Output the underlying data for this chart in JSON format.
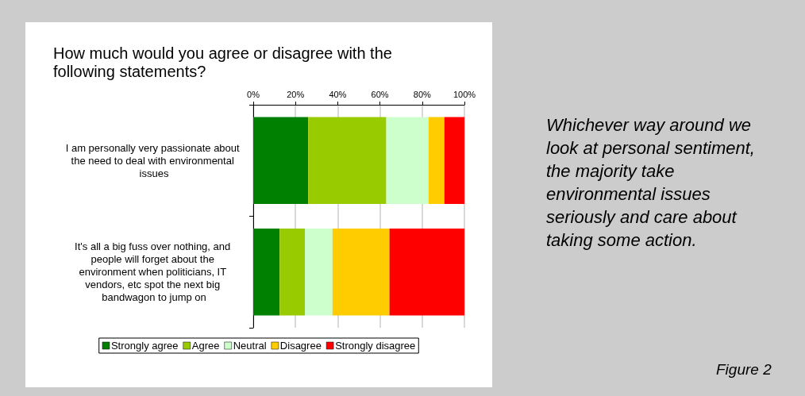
{
  "chart_data": {
    "type": "bar",
    "orientation": "horizontal",
    "stacked": true,
    "title": "How much would you agree or disagree with the following statements?",
    "categories": [
      "I am personally very passionate about the need to deal with environmental issues",
      "It's all a big fuss over nothing, and people will forget about the environment when politicians, IT vendors, etc spot the next big bandwagon to jump on"
    ],
    "series": [
      {
        "name": "Strongly agree",
        "color": "#008000",
        "values": [
          26,
          12.5
        ]
      },
      {
        "name": "Agree",
        "color": "#99cc00",
        "values": [
          37,
          12
        ]
      },
      {
        "name": "Neutral",
        "color": "#ccffcc",
        "values": [
          20,
          13
        ]
      },
      {
        "name": "Disagree",
        "color": "#ffcc00",
        "values": [
          7.5,
          27
        ]
      },
      {
        "name": "Strongly disagree",
        "color": "#ff0000",
        "values": [
          9.5,
          35.5
        ]
      }
    ],
    "xlim": [
      0,
      100
    ],
    "xticks": [
      {
        "value": 0,
        "label": "0%"
      },
      {
        "value": 20,
        "label": "20%"
      },
      {
        "value": 40,
        "label": "40%"
      },
      {
        "value": 60,
        "label": "60%"
      },
      {
        "value": 80,
        "label": "80%"
      },
      {
        "value": 100,
        "label": "100%"
      }
    ],
    "grid": "x",
    "legend": "bottom",
    "annotations": [
      "Whichever way around we look at personal sentiment, the majority take environmental issues seriously and care about taking some action.",
      "Figure 2"
    ]
  }
}
